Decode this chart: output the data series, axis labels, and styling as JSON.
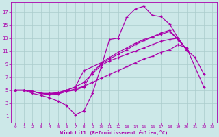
{
  "xlabel": "Windchill (Refroidissement éolien,°C)",
  "background_color": "#cce8e8",
  "line_color": "#aa00aa",
  "xlim": [
    -0.5,
    23.5
  ],
  "ylim": [
    0,
    18.5
  ],
  "xticks": [
    0,
    1,
    2,
    3,
    4,
    5,
    6,
    7,
    8,
    9,
    10,
    11,
    12,
    13,
    14,
    15,
    16,
    17,
    18,
    19,
    20,
    21,
    22,
    23
  ],
  "yticks": [
    1,
    3,
    5,
    7,
    9,
    11,
    13,
    15,
    17
  ],
  "grid_color": "#aacccc",
  "series": [
    {
      "x": [
        0,
        1,
        2,
        3,
        4,
        5,
        6,
        7,
        8,
        9,
        10,
        11,
        12,
        13,
        14,
        15,
        16,
        17,
        18,
        19,
        20,
        21,
        22
      ],
      "y": [
        5,
        5,
        4.5,
        4.2,
        3.8,
        3.3,
        2.6,
        1.2,
        1.8,
        4.5,
        8.5,
        12.8,
        13.0,
        16.2,
        17.5,
        17.9,
        16.5,
        16.3,
        15.2,
        13.0,
        11.2,
        10.0,
        7.5
      ]
    },
    {
      "x": [
        0,
        1,
        2,
        3,
        4,
        5,
        6,
        7,
        8,
        9,
        10,
        11,
        12,
        13,
        14,
        15,
        16,
        17,
        18,
        19,
        20,
        22
      ],
      "y": [
        5,
        5,
        4.8,
        4.5,
        4.3,
        4.4,
        4.8,
        5.2,
        5.6,
        6.2,
        6.8,
        7.4,
        8.0,
        8.6,
        9.2,
        9.8,
        10.2,
        10.8,
        11.2,
        12.0,
        11.5,
        5.5
      ]
    },
    {
      "x": [
        0,
        1,
        2,
        3,
        4,
        5,
        6,
        7,
        8,
        9,
        10,
        11,
        12,
        13,
        14,
        15,
        16,
        17,
        18,
        19,
        20
      ],
      "y": [
        5,
        5,
        4.8,
        4.5,
        4.4,
        4.6,
        5.0,
        5.5,
        6.2,
        7.5,
        8.8,
        9.5,
        10.0,
        10.5,
        11.0,
        11.5,
        12.0,
        12.5,
        12.8,
        13.0,
        11.2
      ]
    },
    {
      "x": [
        0,
        1,
        2,
        3,
        4,
        5,
        6,
        7,
        8,
        9,
        10,
        11,
        12,
        13,
        14,
        15,
        16,
        17,
        18,
        19,
        20
      ],
      "y": [
        5,
        5,
        4.8,
        4.5,
        4.4,
        4.5,
        4.8,
        5.0,
        5.5,
        7.8,
        9.0,
        9.8,
        10.5,
        11.2,
        12.0,
        12.6,
        13.2,
        13.8,
        14.2,
        12.8,
        11.2
      ]
    },
    {
      "x": [
        0,
        1,
        2,
        3,
        4,
        5,
        6,
        7,
        8,
        10,
        11,
        12,
        13,
        14,
        15,
        16,
        17,
        18,
        19,
        20
      ],
      "y": [
        5,
        5,
        4.8,
        4.5,
        4.5,
        4.6,
        5.0,
        5.5,
        8.0,
        9.2,
        10.0,
        10.8,
        11.5,
        12.2,
        12.8,
        13.2,
        13.6,
        14.0,
        12.8,
        11.2
      ]
    }
  ]
}
